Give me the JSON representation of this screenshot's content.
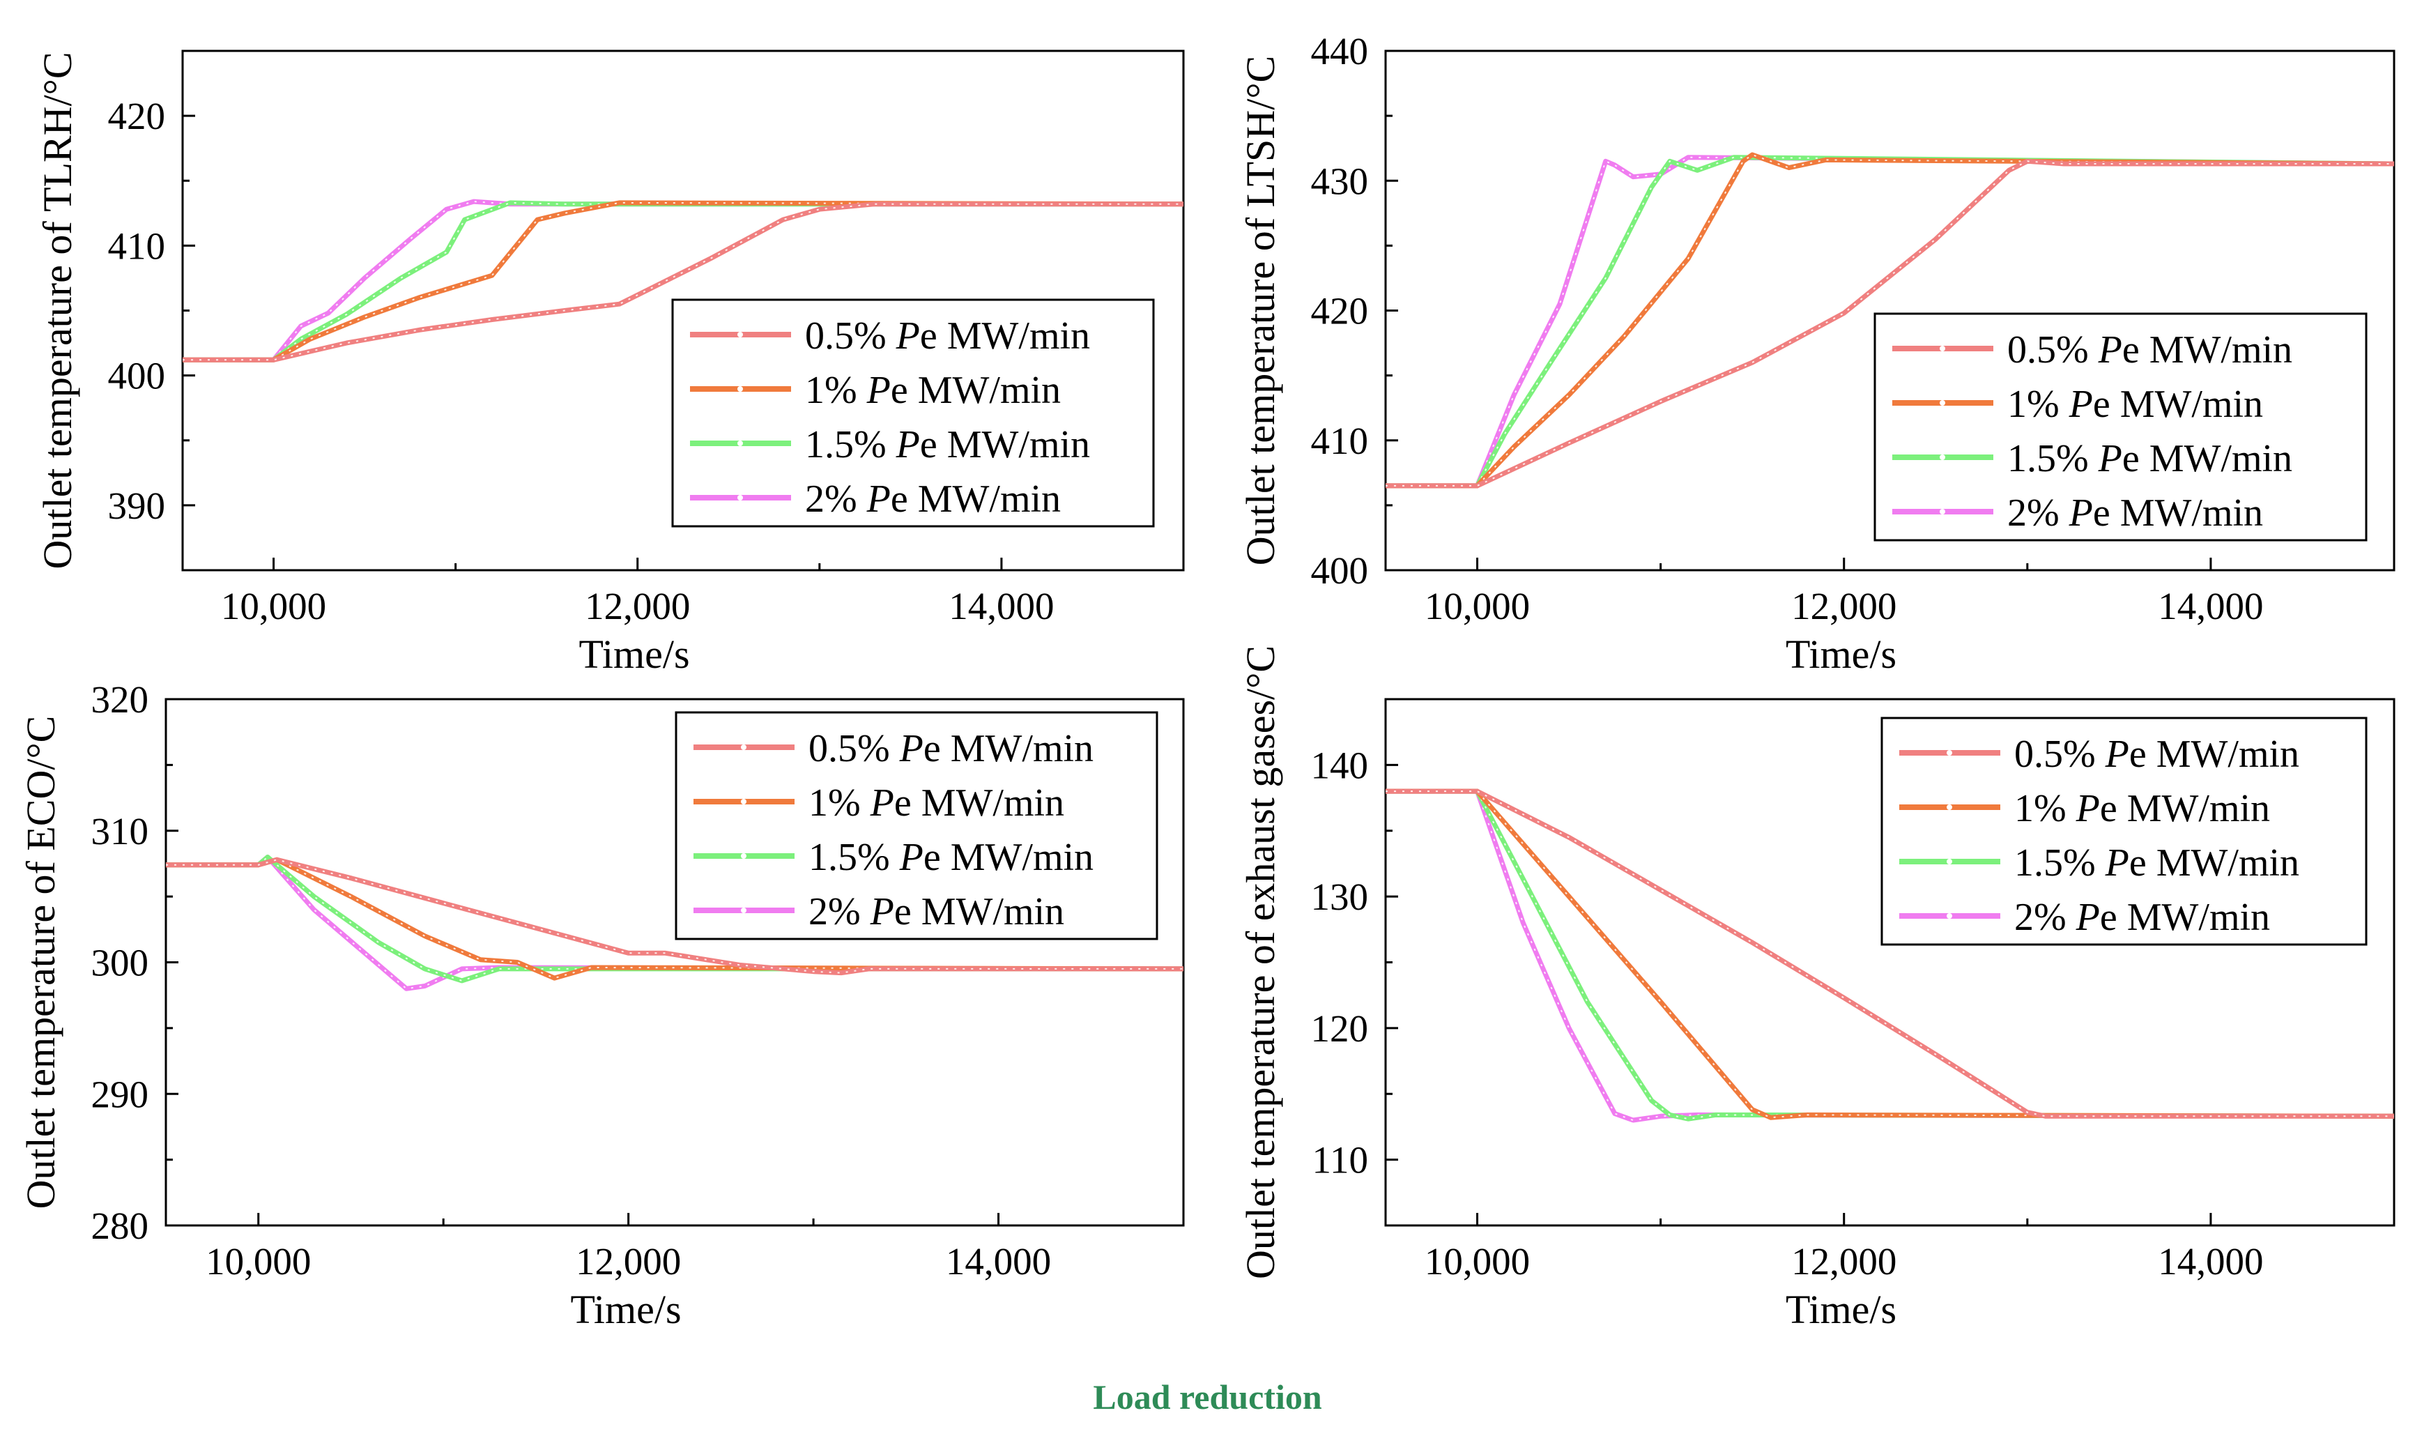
{
  "caption": "Load reduction",
  "series_colors": [
    "#f08080",
    "#f07a3c",
    "#7cf07c",
    "#f07cf0"
  ],
  "chart_data": [
    {
      "type": "line",
      "ylabel": "Outlet temperature of TLRH/°C",
      "xlabel": "Time/s",
      "xlim": [
        9500,
        15000
      ],
      "ylim": [
        385,
        425
      ],
      "xticks": [
        10000,
        12000,
        14000
      ],
      "xtick_labels": [
        "10,000",
        "12,000",
        "14,000"
      ],
      "yticks": [
        390,
        400,
        410,
        420
      ],
      "ytick_labels": [
        "390",
        "400",
        "410",
        "420"
      ],
      "legend_position": "center-right",
      "series": [
        {
          "name": "0.5%",
          "label_prefix": "0.5% ",
          "label_italic": "P",
          "label_suffix": "e MW/min",
          "x": [
            9500,
            10000,
            10400,
            10800,
            11200,
            11600,
            11900,
            12000,
            12400,
            12800,
            13000,
            13300,
            15000
          ],
          "y": [
            401.2,
            401.2,
            402.5,
            403.5,
            404.3,
            405.0,
            405.5,
            406.2,
            409.0,
            412.0,
            412.8,
            413.2,
            413.2
          ]
        },
        {
          "name": "1%",
          "label_prefix": "1% ",
          "label_italic": "P",
          "label_suffix": "e MW/min",
          "x": [
            9500,
            10000,
            10200,
            10500,
            10800,
            11200,
            11450,
            11600,
            11900,
            15000
          ],
          "y": [
            401.2,
            401.2,
            402.8,
            404.5,
            406.0,
            407.7,
            412.0,
            412.5,
            413.3,
            413.2
          ]
        },
        {
          "name": "1.5%",
          "label_prefix": "1.5% ",
          "label_italic": "P",
          "label_suffix": "e MW/min",
          "x": [
            9500,
            10000,
            10150,
            10400,
            10700,
            10950,
            11050,
            11300,
            11600,
            15000
          ],
          "y": [
            401.2,
            401.2,
            402.8,
            404.7,
            407.5,
            409.5,
            412.0,
            413.3,
            413.2,
            413.2
          ]
        },
        {
          "name": "2%",
          "label_prefix": "2% ",
          "label_italic": "P",
          "label_suffix": "e MW/min",
          "x": [
            9500,
            10000,
            10150,
            10300,
            10500,
            10750,
            10950,
            11100,
            11300,
            15000
          ],
          "y": [
            401.2,
            401.2,
            403.8,
            404.8,
            407.5,
            410.5,
            412.8,
            413.4,
            413.2,
            413.2
          ]
        }
      ]
    },
    {
      "type": "line",
      "ylabel": "Outlet temperature of LTSH/°C",
      "xlabel": "Time/s",
      "xlim": [
        9500,
        15000
      ],
      "ylim": [
        400,
        440
      ],
      "xticks": [
        10000,
        12000,
        14000
      ],
      "xtick_labels": [
        "10,000",
        "12,000",
        "14,000"
      ],
      "yticks": [
        400,
        410,
        420,
        430,
        440
      ],
      "ytick_labels": [
        "400",
        "410",
        "420",
        "430",
        "440"
      ],
      "legend_position": "center-right",
      "series": [
        {
          "name": "0.5%",
          "label_prefix": "0.5% ",
          "label_italic": "P",
          "label_suffix": "e MW/min",
          "x": [
            9500,
            10000,
            10500,
            11000,
            11500,
            12000,
            12500,
            12900,
            13000,
            13200,
            15000
          ],
          "y": [
            406.5,
            406.5,
            409.8,
            413.0,
            416.0,
            419.8,
            425.5,
            430.8,
            431.5,
            431.3,
            431.3
          ]
        },
        {
          "name": "1%",
          "label_prefix": "1% ",
          "label_italic": "P",
          "label_suffix": "e MW/min",
          "x": [
            9500,
            10000,
            10200,
            10500,
            10800,
            11150,
            11450,
            11500,
            11700,
            11900,
            15000
          ],
          "y": [
            406.5,
            406.5,
            409.5,
            413.5,
            418.0,
            424.0,
            431.5,
            432.0,
            431.0,
            431.6,
            431.3
          ]
        },
        {
          "name": "1.5%",
          "label_prefix": "1.5% ",
          "label_italic": "P",
          "label_suffix": "e MW/min",
          "x": [
            9500,
            10000,
            10150,
            10400,
            10700,
            10950,
            11050,
            11200,
            11400,
            15000
          ],
          "y": [
            406.5,
            406.5,
            410.5,
            416.0,
            422.5,
            429.5,
            431.5,
            430.8,
            431.8,
            431.3
          ]
        },
        {
          "name": "2%",
          "label_prefix": "2% ",
          "label_italic": "P",
          "label_suffix": "e MW/min",
          "x": [
            9500,
            10000,
            10200,
            10450,
            10700,
            10750,
            10850,
            11000,
            11150,
            15000
          ],
          "y": [
            406.5,
            406.5,
            413.5,
            420.5,
            431.5,
            431.2,
            430.3,
            430.5,
            431.8,
            431.3
          ]
        }
      ]
    },
    {
      "type": "line",
      "ylabel": "Outlet temperature of ECO/°C",
      "xlabel": "Time/s",
      "xlim": [
        9500,
        15000
      ],
      "ylim": [
        280,
        320
      ],
      "xticks": [
        10000,
        12000,
        14000
      ],
      "xtick_labels": [
        "10,000",
        "12,000",
        "14,000"
      ],
      "yticks": [
        280,
        290,
        300,
        310,
        320
      ],
      "ytick_labels": [
        "280",
        "290",
        "300",
        "310",
        "320"
      ],
      "legend_position": "top-right",
      "series": [
        {
          "name": "0.5%",
          "label_prefix": "0.5% ",
          "label_italic": "P",
          "label_suffix": "e MW/min",
          "x": [
            9500,
            10000,
            10100,
            10500,
            11000,
            11500,
            12000,
            12200,
            12600,
            13000,
            13150,
            13300,
            15000
          ],
          "y": [
            307.4,
            307.4,
            307.8,
            306.4,
            304.5,
            302.6,
            300.7,
            300.7,
            299.8,
            299.3,
            299.2,
            299.5,
            299.5
          ]
        },
        {
          "name": "1%",
          "label_prefix": "1% ",
          "label_italic": "P",
          "label_suffix": "e MW/min",
          "x": [
            9500,
            10000,
            10100,
            10500,
            10900,
            11200,
            11400,
            11600,
            11800,
            15000
          ],
          "y": [
            307.4,
            307.4,
            307.8,
            305.0,
            302.0,
            300.2,
            300.0,
            298.8,
            299.6,
            299.5
          ]
        },
        {
          "name": "1.5%",
          "label_prefix": "1.5% ",
          "label_italic": "P",
          "label_suffix": "e MW/min",
          "x": [
            9500,
            10000,
            10050,
            10300,
            10650,
            10900,
            11100,
            11300,
            11500,
            15000
          ],
          "y": [
            307.4,
            307.4,
            308.0,
            305.0,
            301.5,
            299.5,
            298.6,
            299.5,
            299.5,
            299.5
          ]
        },
        {
          "name": "2%",
          "label_prefix": "2% ",
          "label_italic": "P",
          "label_suffix": "e MW/min",
          "x": [
            9500,
            10000,
            10050,
            10300,
            10550,
            10800,
            10900,
            11100,
            11300,
            15000
          ],
          "y": [
            307.4,
            307.4,
            308.0,
            304.0,
            301.0,
            298.0,
            298.2,
            299.5,
            299.6,
            299.5
          ]
        }
      ]
    },
    {
      "type": "line",
      "ylabel": "Outlet temperature of exhaust gases/°C",
      "xlabel": "Time/s",
      "xlim": [
        9500,
        15000
      ],
      "ylim": [
        105,
        145
      ],
      "xticks": [
        10000,
        12000,
        14000
      ],
      "xtick_labels": [
        "10,000",
        "12,000",
        "14,000"
      ],
      "yticks": [
        110,
        120,
        130,
        140
      ],
      "ytick_labels": [
        "110",
        "120",
        "130",
        "140"
      ],
      "legend_position": "top-right",
      "series": [
        {
          "name": "0.5%",
          "label_prefix": "0.5% ",
          "label_italic": "P",
          "label_suffix": "e MW/min",
          "x": [
            9500,
            10000,
            10500,
            11000,
            11500,
            12000,
            12500,
            13000,
            13100,
            15000
          ],
          "y": [
            138.0,
            138.0,
            134.5,
            130.5,
            126.5,
            122.3,
            118.0,
            113.6,
            113.3,
            113.3
          ]
        },
        {
          "name": "1%",
          "label_prefix": "1% ",
          "label_italic": "P",
          "label_suffix": "e MW/min",
          "x": [
            9500,
            10000,
            10500,
            11000,
            11500,
            11600,
            11800,
            15000
          ],
          "y": [
            138.0,
            138.0,
            130.0,
            122.0,
            113.8,
            113.2,
            113.4,
            113.3
          ]
        },
        {
          "name": "1.5%",
          "label_prefix": "1.5% ",
          "label_italic": "P",
          "label_suffix": "e MW/min",
          "x": [
            9500,
            10000,
            10300,
            10600,
            10950,
            11050,
            11150,
            11300,
            15000
          ],
          "y": [
            138.0,
            138.0,
            130.0,
            122.0,
            114.5,
            113.4,
            113.1,
            113.4,
            113.3
          ]
        },
        {
          "name": "2%",
          "label_prefix": "2% ",
          "label_italic": "P",
          "label_suffix": "e MW/min",
          "x": [
            9500,
            10000,
            10250,
            10500,
            10750,
            10850,
            11000,
            11200,
            15000
          ],
          "y": [
            138.0,
            138.0,
            128.0,
            120.0,
            113.5,
            113.0,
            113.3,
            113.4,
            113.3
          ]
        }
      ]
    }
  ]
}
